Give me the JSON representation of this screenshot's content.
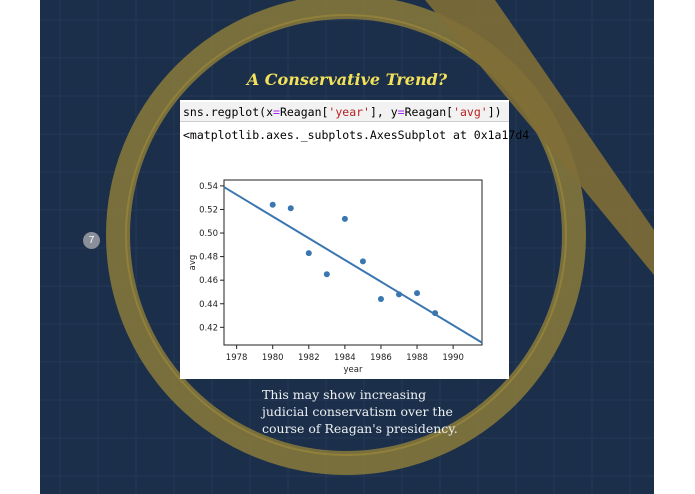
{
  "slide": {
    "title": "A Conservative Trend?",
    "number": "7",
    "caption": "This may show increasing judicial conservatism over the course of Reagan's presidency.",
    "colors": {
      "background": "#1b2f4a",
      "accent": "#c9b040",
      "title": "#f3e15a"
    }
  },
  "notebook": {
    "code_prefix": "sns.regplot(x",
    "code_eq1": "=",
    "code_mid1": "Reagan[",
    "code_str1": "'year'",
    "code_mid2": "], y",
    "code_eq2": "=",
    "code_mid3": "Reagan[",
    "code_str2": "'avg'",
    "code_suffix": "])",
    "output": "<matplotlib.axes._subplots.AxesSubplot at 0x1a17d4"
  },
  "chart_data": {
    "type": "scatter",
    "xlabel": "year",
    "ylabel": "avg",
    "xlim": [
      1977.3,
      1991.6
    ],
    "ylim": [
      0.405,
      0.545
    ],
    "xticks": [
      1978,
      1980,
      1982,
      1984,
      1986,
      1988,
      1990
    ],
    "yticks": [
      0.42,
      0.44,
      0.46,
      0.48,
      0.5,
      0.52,
      0.54
    ],
    "ytick_labels": [
      "0.42",
      "0.44",
      "0.46",
      "0.48",
      "0.50",
      "0.52",
      "0.54"
    ],
    "points": [
      {
        "x": 1980,
        "y": 0.524
      },
      {
        "x": 1981,
        "y": 0.521
      },
      {
        "x": 1982,
        "y": 0.483
      },
      {
        "x": 1983,
        "y": 0.465
      },
      {
        "x": 1984,
        "y": 0.512
      },
      {
        "x": 1985,
        "y": 0.476
      },
      {
        "x": 1986,
        "y": 0.444
      },
      {
        "x": 1987,
        "y": 0.448
      },
      {
        "x": 1988,
        "y": 0.449
      },
      {
        "x": 1989,
        "y": 0.432
      }
    ],
    "regression": {
      "x": [
        1977.3,
        1991.6
      ],
      "y": [
        0.539,
        0.407
      ]
    },
    "color": "#3a76af"
  }
}
